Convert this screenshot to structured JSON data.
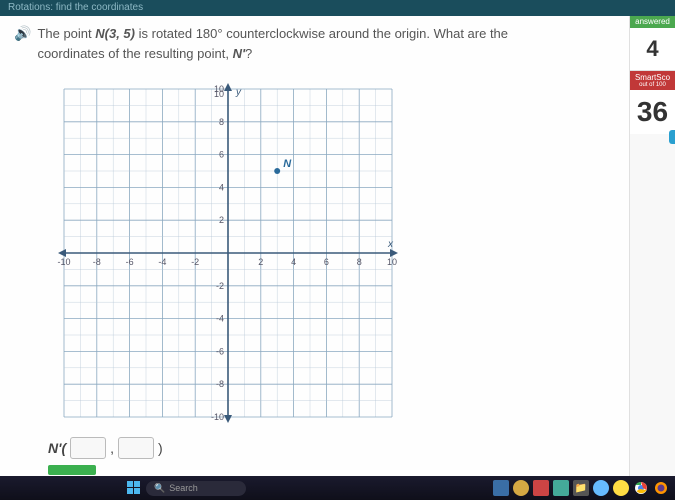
{
  "topbar": {
    "breadcrumb": "Rotations: find the coordinates"
  },
  "question": {
    "line1_a": "The point ",
    "line1_point": "N(3, 5)",
    "line1_b": " is rotated 180° counterclockwise around the origin. What are the",
    "line2": "coordinates of the resulting point, ",
    "line2_nprime": "N'",
    "line2_q": "?"
  },
  "graph": {
    "xmin": -10,
    "xmax": 10,
    "ymin": -10,
    "ymax": 10,
    "gridStep": 1,
    "majorTicks": [
      -10,
      -8,
      -6,
      -4,
      -2,
      2,
      4,
      6,
      8,
      10
    ],
    "axisColor": "#3a5a7a",
    "gridColor": "#b8c8d8",
    "majorGridColor": "#8aa8c0",
    "pointLabel": "N",
    "pointX": 3,
    "pointY": 5,
    "pointColor": "#2a6a9a",
    "xAxisLabel": "x",
    "yAxisLabel": "y"
  },
  "answer": {
    "prefix": "N'(",
    "sep": ",",
    "suffix": ")"
  },
  "sidebar": {
    "answered": "answered",
    "count": "4",
    "smartscore": "SmartSco",
    "outOf": "out of 100",
    "score": "36"
  },
  "taskbar": {
    "search": "Search"
  }
}
